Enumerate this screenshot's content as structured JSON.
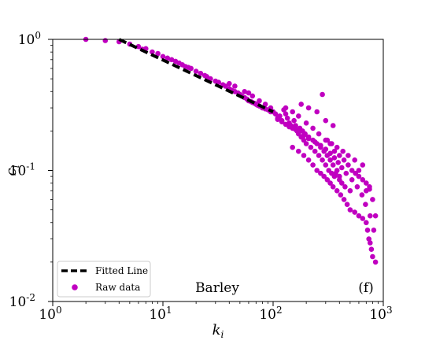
{
  "chart_data": {
    "type": "scatter",
    "title": "",
    "xlabel": "k_i",
    "ylabel": "c_i",
    "xscale": "log",
    "yscale": "log",
    "xlim": [
      1,
      1000
    ],
    "ylim": [
      0.01,
      1
    ],
    "x_ticks": [
      {
        "value": 1,
        "base": "10",
        "exp": "0"
      },
      {
        "value": 10,
        "base": "10",
        "exp": "1"
      },
      {
        "value": 100,
        "base": "10",
        "exp": "2"
      },
      {
        "value": 1000,
        "base": "10",
        "exp": "3"
      }
    ],
    "y_ticks": [
      {
        "value": 0.01,
        "base": "10",
        "exp": "-2"
      },
      {
        "value": 0.1,
        "base": "10",
        "exp": "-1"
      },
      {
        "value": 1,
        "base": "10",
        "exp": "0"
      }
    ],
    "annotations": {
      "network_name": "Barley",
      "panel_label": "(f)"
    },
    "legend": {
      "position": "lower-left",
      "entries": [
        {
          "label": "Fitted Line",
          "style": "dashed-line"
        },
        {
          "label": "Raw data",
          "style": "marker"
        }
      ]
    },
    "series": [
      {
        "name": "Raw data",
        "color": "#c000c0",
        "points": [
          [
            2,
            1.0
          ],
          [
            3,
            0.98
          ],
          [
            4,
            0.96
          ],
          [
            5,
            0.92
          ],
          [
            6,
            0.88
          ],
          [
            6.5,
            0.84
          ],
          [
            7,
            0.85
          ],
          [
            8,
            0.8
          ],
          [
            9,
            0.78
          ],
          [
            10,
            0.74
          ],
          [
            11,
            0.72
          ],
          [
            12,
            0.7
          ],
          [
            13,
            0.68
          ],
          [
            14,
            0.66
          ],
          [
            15,
            0.64
          ],
          [
            16,
            0.62
          ],
          [
            17,
            0.61
          ],
          [
            18,
            0.6
          ],
          [
            20,
            0.57
          ],
          [
            22,
            0.55
          ],
          [
            24,
            0.53
          ],
          [
            25,
            0.52
          ],
          [
            27,
            0.5
          ],
          [
            30,
            0.48
          ],
          [
            32,
            0.47
          ],
          [
            35,
            0.45
          ],
          [
            37,
            0.44
          ],
          [
            40,
            0.42
          ],
          [
            42,
            0.41
          ],
          [
            45,
            0.4
          ],
          [
            48,
            0.39
          ],
          [
            50,
            0.38
          ],
          [
            52,
            0.37
          ],
          [
            55,
            0.36
          ],
          [
            58,
            0.35
          ],
          [
            60,
            0.34
          ],
          [
            63,
            0.335
          ],
          [
            65,
            0.33
          ],
          [
            68,
            0.325
          ],
          [
            70,
            0.32
          ],
          [
            72,
            0.315
          ],
          [
            75,
            0.31
          ],
          [
            80,
            0.3
          ],
          [
            85,
            0.295
          ],
          [
            90,
            0.29
          ],
          [
            95,
            0.28
          ],
          [
            40,
            0.46
          ],
          [
            45,
            0.44
          ],
          [
            55,
            0.4
          ],
          [
            60,
            0.39
          ],
          [
            65,
            0.37
          ],
          [
            75,
            0.34
          ],
          [
            85,
            0.32
          ],
          [
            95,
            0.3
          ],
          [
            100,
            0.28
          ],
          [
            105,
            0.27
          ],
          [
            110,
            0.25
          ],
          [
            115,
            0.26
          ],
          [
            120,
            0.24
          ],
          [
            125,
            0.29
          ],
          [
            130,
            0.27
          ],
          [
            135,
            0.25
          ],
          [
            140,
            0.23
          ],
          [
            145,
            0.22
          ],
          [
            150,
            0.21
          ],
          [
            155,
            0.24
          ],
          [
            160,
            0.22
          ],
          [
            165,
            0.2
          ],
          [
            170,
            0.19
          ],
          [
            175,
            0.21
          ],
          [
            180,
            0.18
          ],
          [
            185,
            0.2
          ],
          [
            190,
            0.17
          ],
          [
            195,
            0.19
          ],
          [
            200,
            0.16
          ],
          [
            210,
            0.18
          ],
          [
            220,
            0.15
          ],
          [
            230,
            0.17
          ],
          [
            240,
            0.14
          ],
          [
            250,
            0.16
          ],
          [
            260,
            0.13
          ],
          [
            270,
            0.15
          ],
          [
            280,
            0.12
          ],
          [
            290,
            0.14
          ],
          [
            300,
            0.11
          ],
          [
            310,
            0.13
          ],
          [
            320,
            0.1
          ],
          [
            330,
            0.12
          ],
          [
            340,
            0.095
          ],
          [
            350,
            0.11
          ],
          [
            360,
            0.09
          ],
          [
            380,
            0.1
          ],
          [
            400,
            0.085
          ],
          [
            420,
            0.08
          ],
          [
            130,
            0.3
          ],
          [
            150,
            0.28
          ],
          [
            170,
            0.26
          ],
          [
            200,
            0.23
          ],
          [
            230,
            0.21
          ],
          [
            260,
            0.19
          ],
          [
            300,
            0.17
          ],
          [
            330,
            0.16
          ],
          [
            360,
            0.14
          ],
          [
            400,
            0.13
          ],
          [
            440,
            0.12
          ],
          [
            480,
            0.11
          ],
          [
            520,
            0.1
          ],
          [
            560,
            0.095
          ],
          [
            600,
            0.09
          ],
          [
            650,
            0.085
          ],
          [
            700,
            0.08
          ],
          [
            750,
            0.075
          ],
          [
            180,
            0.32
          ],
          [
            210,
            0.3
          ],
          [
            250,
            0.28
          ],
          [
            300,
            0.24
          ],
          [
            350,
            0.22
          ],
          [
            280,
            0.38
          ],
          [
            150,
            0.15
          ],
          [
            170,
            0.14
          ],
          [
            190,
            0.13
          ],
          [
            210,
            0.12
          ],
          [
            230,
            0.11
          ],
          [
            250,
            0.1
          ],
          [
            270,
            0.095
          ],
          [
            290,
            0.09
          ],
          [
            310,
            0.085
          ],
          [
            330,
            0.08
          ],
          [
            350,
            0.075
          ],
          [
            380,
            0.07
          ],
          [
            410,
            0.065
          ],
          [
            440,
            0.06
          ],
          [
            470,
            0.055
          ],
          [
            500,
            0.05
          ],
          [
            550,
            0.048
          ],
          [
            600,
            0.045
          ],
          [
            650,
            0.043
          ],
          [
            700,
            0.04
          ],
          [
            720,
            0.035
          ],
          [
            740,
            0.03
          ],
          [
            760,
            0.028
          ],
          [
            780,
            0.025
          ],
          [
            800,
            0.022
          ],
          [
            850,
            0.02
          ],
          [
            820,
            0.035
          ],
          [
            760,
            0.045
          ],
          [
            690,
            0.055
          ],
          [
            640,
            0.065
          ],
          [
            580,
            0.075
          ],
          [
            520,
            0.085
          ],
          [
            460,
            0.095
          ],
          [
            420,
            0.105
          ],
          [
            390,
            0.115
          ],
          [
            360,
            0.125
          ],
          [
            330,
            0.135
          ],
          [
            300,
            0.145
          ],
          [
            270,
            0.155
          ],
          [
            240,
            0.165
          ],
          [
            210,
            0.175
          ],
          [
            190,
            0.185
          ],
          [
            170,
            0.195
          ],
          [
            160,
            0.205
          ],
          [
            140,
            0.215
          ],
          [
            130,
            0.225
          ],
          [
            120,
            0.235
          ],
          [
            110,
            0.245
          ],
          [
            700,
            0.07
          ],
          [
            750,
            0.072
          ],
          [
            800,
            0.06
          ],
          [
            850,
            0.045
          ],
          [
            500,
            0.07
          ],
          [
            450,
            0.075
          ],
          [
            400,
            0.09
          ],
          [
            370,
            0.095
          ],
          [
            600,
            0.1
          ],
          [
            650,
            0.11
          ],
          [
            550,
            0.12
          ],
          [
            480,
            0.13
          ],
          [
            430,
            0.14
          ],
          [
            380,
            0.15
          ],
          [
            340,
            0.16
          ],
          [
            310,
            0.17
          ]
        ]
      }
    ],
    "fitted_line": {
      "name": "Fitted Line",
      "color": "#000000",
      "points": [
        [
          4,
          1.0
        ],
        [
          100,
          0.28
        ]
      ]
    }
  }
}
